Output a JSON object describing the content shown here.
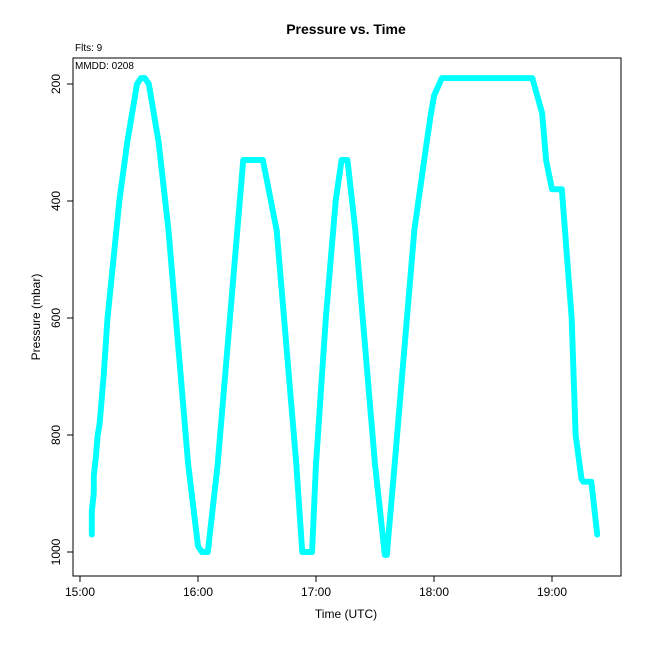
{
  "chart_data": {
    "type": "scatter",
    "title": "Pressure  vs. Time",
    "xlabel": "Time (UTC)",
    "ylabel": "Pressure (mbar)",
    "y_reversed": true,
    "xlim": [
      "15:00",
      "19:40"
    ],
    "ylim": [
      1035,
      165
    ],
    "x_ticks": [
      "15:00",
      "16:00",
      "17:00",
      "18:00",
      "19:00"
    ],
    "y_ticks": [
      "200",
      "400",
      "600",
      "800",
      "1000"
    ],
    "grid": false,
    "marker_color": "#00FFFF",
    "annotations": {
      "flts": "Flts: 9",
      "mmdd": "MMDD: 0208"
    },
    "series": [
      {
        "x": [
          "15:06",
          "15:06",
          "15:07",
          "15:07",
          "15:08",
          "15:09",
          "15:10",
          "15:12",
          "15:14",
          "15:17",
          "15:20",
          "15:24",
          "15:29",
          "15:31",
          "15:33",
          "15:35",
          "15:40",
          "15:45",
          "15:50",
          "15:55",
          "16:00",
          "16:02",
          "16:05",
          "16:10",
          "16:15",
          "16:20",
          "16:23",
          "16:30",
          "16:33",
          "16:40",
          "16:45",
          "16:50",
          "16:53",
          "16:58",
          "17:00",
          "17:05",
          "17:10",
          "17:13",
          "17:16",
          "17:20",
          "17:25",
          "17:30",
          "17:35",
          "17:36",
          "17:40",
          "17:45",
          "17:50",
          "17:55",
          "17:58",
          "18:00",
          "18:04",
          "18:07",
          "18:10",
          "18:20",
          "18:30",
          "18:40",
          "18:45",
          "18:50",
          "18:55",
          "18:57",
          "19:00",
          "19:05",
          "19:10",
          "19:12",
          "19:15",
          "19:16",
          "19:20",
          "19:23"
        ],
        "y": [
          970,
          930,
          900,
          870,
          840,
          800,
          780,
          700,
          600,
          500,
          400,
          300,
          200,
          190,
          190,
          200,
          300,
          450,
          650,
          850,
          990,
          1000,
          1000,
          850,
          650,
          450,
          330,
          330,
          330,
          450,
          650,
          850,
          1000,
          1000,
          850,
          600,
          400,
          330,
          330,
          450,
          650,
          850,
          1005,
          1005,
          850,
          650,
          450,
          330,
          260,
          220,
          190,
          190,
          190,
          190,
          190,
          190,
          190,
          190,
          250,
          330,
          380,
          380,
          600,
          800,
          875,
          880,
          880,
          970
        ]
      }
    ]
  }
}
